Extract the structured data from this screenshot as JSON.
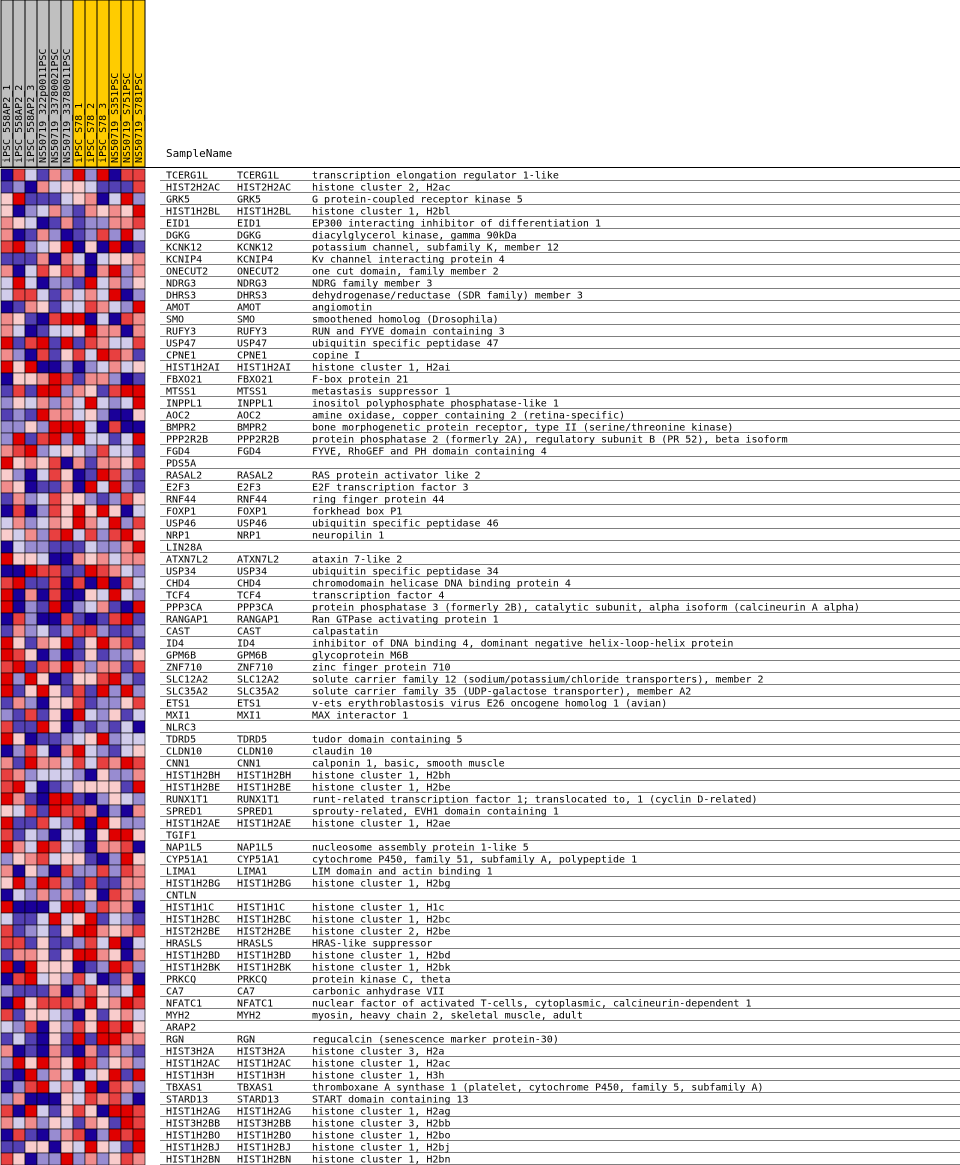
{
  "chart_data": {
    "type": "heatmap",
    "header_label": "SampleName",
    "columns": [
      {
        "name": "iPSC_558AP2_1",
        "group": "A"
      },
      {
        "name": "iPSC_558AP2_2",
        "group": "A"
      },
      {
        "name": "iPSC_558AP2_3",
        "group": "A"
      },
      {
        "name": "NS50719_322p0011PSC",
        "group": "A"
      },
      {
        "name": "NS50719_33780021PSC",
        "group": "A"
      },
      {
        "name": "NS50719_33780011PSC",
        "group": "A"
      },
      {
        "name": "iPSC_S78_1",
        "group": "B"
      },
      {
        "name": "iPSC_S78_2",
        "group": "B"
      },
      {
        "name": "iPSC_S78_3",
        "group": "B"
      },
      {
        "name": "NS50719_S351PSC",
        "group": "B"
      },
      {
        "name": "NS50719_S751PSC",
        "group": "B"
      },
      {
        "name": "NS50719_S781PSC",
        "group": "B"
      }
    ],
    "group_colors": {
      "A": "#c0c0c0",
      "B": "#ffcc00"
    },
    "color_scale": {
      "low": "#1a0099",
      "mid": "#ffffff",
      "high": "#e00000"
    },
    "rows": [
      {
        "id": "TCERG1L",
        "symbol": "TCERG1L",
        "desc": "transcription elongation regulator 1-like"
      },
      {
        "id": "HIST2H2AC",
        "symbol": "HIST2H2AC",
        "desc": "histone cluster 2, H2ac"
      },
      {
        "id": "GRK5",
        "symbol": "GRK5",
        "desc": "G protein-coupled receptor kinase 5"
      },
      {
        "id": "HIST1H2BL",
        "symbol": "HIST1H2BL",
        "desc": "histone cluster 1, H2bl"
      },
      {
        "id": "EID1",
        "symbol": "EID1",
        "desc": "EP300 interacting inhibitor of differentiation 1"
      },
      {
        "id": "DGKG",
        "symbol": "DGKG",
        "desc": "diacylglycerol kinase, gamma 90kDa"
      },
      {
        "id": "KCNK12",
        "symbol": "KCNK12",
        "desc": "potassium channel, subfamily K, member 12"
      },
      {
        "id": "KCNIP4",
        "symbol": "KCNIP4",
        "desc": "Kv channel interacting protein 4"
      },
      {
        "id": "ONECUT2",
        "symbol": "ONECUT2",
        "desc": "one cut domain, family member 2"
      },
      {
        "id": "NDRG3",
        "symbol": "NDRG3",
        "desc": "NDRG family member 3"
      },
      {
        "id": "DHRS3",
        "symbol": "DHRS3",
        "desc": "dehydrogenase/reductase (SDR family) member 3"
      },
      {
        "id": "AMOT",
        "symbol": "AMOT",
        "desc": "angiomotin"
      },
      {
        "id": "SMO",
        "symbol": "SMO",
        "desc": "smoothened homolog (Drosophila)"
      },
      {
        "id": "RUFY3",
        "symbol": "RUFY3",
        "desc": "RUN and FYVE domain containing 3"
      },
      {
        "id": "USP47",
        "symbol": "USP47",
        "desc": "ubiquitin specific peptidase 47"
      },
      {
        "id": "CPNE1",
        "symbol": "CPNE1",
        "desc": "copine I"
      },
      {
        "id": "HIST1H2AI",
        "symbol": "HIST1H2AI",
        "desc": "histone cluster 1, H2ai"
      },
      {
        "id": "FBXO21",
        "symbol": "FBXO21",
        "desc": "F-box protein 21"
      },
      {
        "id": "MTSS1",
        "symbol": "MTSS1",
        "desc": "metastasis suppressor 1"
      },
      {
        "id": "INPPL1",
        "symbol": "INPPL1",
        "desc": "inositol polyphosphate phosphatase-like 1"
      },
      {
        "id": "AOC2",
        "symbol": "AOC2",
        "desc": "amine oxidase, copper containing 2 (retina-specific)"
      },
      {
        "id": "BMPR2",
        "symbol": "BMPR2",
        "desc": "bone morphogenetic protein receptor, type II (serine/threonine kinase)"
      },
      {
        "id": "PPP2R2B",
        "symbol": "PPP2R2B",
        "desc": "protein phosphatase 2 (formerly 2A), regulatory subunit B (PR 52), beta isoform"
      },
      {
        "id": "FGD4",
        "symbol": "FGD4",
        "desc": "FYVE, RhoGEF and PH domain containing 4"
      },
      {
        "id": "PDS5A",
        "symbol": "",
        "desc": ""
      },
      {
        "id": "RASAL2",
        "symbol": "RASAL2",
        "desc": "RAS protein activator like 2"
      },
      {
        "id": "E2F3",
        "symbol": "E2F3",
        "desc": "E2F transcription factor 3"
      },
      {
        "id": "RNF44",
        "symbol": "RNF44",
        "desc": "ring finger protein 44"
      },
      {
        "id": "FOXP1",
        "symbol": "FOXP1",
        "desc": "forkhead box P1"
      },
      {
        "id": "USP46",
        "symbol": "USP46",
        "desc": "ubiquitin specific peptidase 46"
      },
      {
        "id": "NRP1",
        "symbol": "NRP1",
        "desc": "neuropilin 1"
      },
      {
        "id": "LIN28A",
        "symbol": "",
        "desc": ""
      },
      {
        "id": "ATXN7L2",
        "symbol": "ATXN7L2",
        "desc": "ataxin 7-like 2"
      },
      {
        "id": "USP34",
        "symbol": "USP34",
        "desc": "ubiquitin specific peptidase 34"
      },
      {
        "id": "CHD4",
        "symbol": "CHD4",
        "desc": "chromodomain helicase DNA binding protein 4"
      },
      {
        "id": "TCF4",
        "symbol": "TCF4",
        "desc": "transcription factor 4"
      },
      {
        "id": "PPP3CA",
        "symbol": "PPP3CA",
        "desc": "protein phosphatase 3 (formerly 2B), catalytic subunit, alpha isoform (calcineurin A alpha)"
      },
      {
        "id": "RANGAP1",
        "symbol": "RANGAP1",
        "desc": "Ran GTPase activating protein 1"
      },
      {
        "id": "CAST",
        "symbol": "CAST",
        "desc": "calpastatin"
      },
      {
        "id": "ID4",
        "symbol": "ID4",
        "desc": "inhibitor of DNA binding 4, dominant negative helix-loop-helix protein"
      },
      {
        "id": "GPM6B",
        "symbol": "GPM6B",
        "desc": "glycoprotein M6B"
      },
      {
        "id": "ZNF710",
        "symbol": "ZNF710",
        "desc": "zinc finger protein 710"
      },
      {
        "id": "SLC12A2",
        "symbol": "SLC12A2",
        "desc": "solute carrier family 12 (sodium/potassium/chloride transporters), member 2"
      },
      {
        "id": "SLC35A2",
        "symbol": "SLC35A2",
        "desc": "solute carrier family 35 (UDP-galactose transporter), member A2"
      },
      {
        "id": "ETS1",
        "symbol": "ETS1",
        "desc": "v-ets erythroblastosis virus E26 oncogene homolog 1 (avian)"
      },
      {
        "id": "MXI1",
        "symbol": "MXI1",
        "desc": "MAX interactor 1"
      },
      {
        "id": "NLRC3",
        "symbol": "",
        "desc": ""
      },
      {
        "id": "TDRD5",
        "symbol": "TDRD5",
        "desc": "tudor domain containing 5"
      },
      {
        "id": "CLDN10",
        "symbol": "CLDN10",
        "desc": "claudin 10"
      },
      {
        "id": "CNN1",
        "symbol": "CNN1",
        "desc": "calponin 1, basic, smooth muscle"
      },
      {
        "id": "HIST1H2BH",
        "symbol": "HIST1H2BH",
        "desc": "histone cluster 1, H2bh"
      },
      {
        "id": "HIST1H2BE",
        "symbol": "HIST1H2BE",
        "desc": "histone cluster 1, H2be"
      },
      {
        "id": "RUNX1T1",
        "symbol": "RUNX1T1",
        "desc": "runt-related transcription factor 1; translocated to, 1 (cyclin D-related)"
      },
      {
        "id": "SPRED1",
        "symbol": "SPRED1",
        "desc": "sprouty-related, EVH1 domain containing 1"
      },
      {
        "id": "HIST1H2AE",
        "symbol": "HIST1H2AE",
        "desc": "histone cluster 1, H2ae"
      },
      {
        "id": "TGIF1",
        "symbol": "",
        "desc": ""
      },
      {
        "id": "NAP1L5",
        "symbol": "NAP1L5",
        "desc": "nucleosome assembly protein 1-like 5"
      },
      {
        "id": "CYP51A1",
        "symbol": "CYP51A1",
        "desc": "cytochrome P450, family 51, subfamily A, polypeptide 1"
      },
      {
        "id": "LIMA1",
        "symbol": "LIMA1",
        "desc": "LIM domain and actin binding 1"
      },
      {
        "id": "HIST1H2BG",
        "symbol": "HIST1H2BG",
        "desc": "histone cluster 1, H2bg"
      },
      {
        "id": "CNTLN",
        "symbol": "",
        "desc": ""
      },
      {
        "id": "HIST1H1C",
        "symbol": "HIST1H1C",
        "desc": "histone cluster 1, H1c"
      },
      {
        "id": "HIST1H2BC",
        "symbol": "HIST1H2BC",
        "desc": "histone cluster 1, H2bc"
      },
      {
        "id": "HIST2H2BE",
        "symbol": "HIST2H2BE",
        "desc": "histone cluster 2, H2be"
      },
      {
        "id": "HRASLS",
        "symbol": "HRASLS",
        "desc": "HRAS-like suppressor"
      },
      {
        "id": "HIST1H2BD",
        "symbol": "HIST1H2BD",
        "desc": "histone cluster 1, H2bd"
      },
      {
        "id": "HIST1H2BK",
        "symbol": "HIST1H2BK",
        "desc": "histone cluster 1, H2bk"
      },
      {
        "id": "PRKCQ",
        "symbol": "PRKCQ",
        "desc": "protein kinase C, theta"
      },
      {
        "id": "CA7",
        "symbol": "CA7",
        "desc": "carbonic anhydrase VII"
      },
      {
        "id": "NFATC1",
        "symbol": "NFATC1",
        "desc": "nuclear factor of activated T-cells, cytoplasmic, calcineurin-dependent 1"
      },
      {
        "id": "MYH2",
        "symbol": "MYH2",
        "desc": "myosin, heavy chain 2, skeletal muscle, adult"
      },
      {
        "id": "ARAP2",
        "symbol": "",
        "desc": ""
      },
      {
        "id": "RGN",
        "symbol": "RGN",
        "desc": "regucalcin (senescence marker protein-30)"
      },
      {
        "id": "HIST3H2A",
        "symbol": "HIST3H2A",
        "desc": "histone cluster 3, H2a"
      },
      {
        "id": "HIST1H2AC",
        "symbol": "HIST1H2AC",
        "desc": "histone cluster 1, H2ac"
      },
      {
        "id": "HIST1H3H",
        "symbol": "HIST1H3H",
        "desc": "histone cluster 1, H3h"
      },
      {
        "id": "TBXAS1",
        "symbol": "TBXAS1",
        "desc": "thromboxane A synthase 1 (platelet, cytochrome P450, family 5, subfamily A)"
      },
      {
        "id": "STARD13",
        "symbol": "STARD13",
        "desc": "START domain containing 13"
      },
      {
        "id": "HIST1H2AG",
        "symbol": "HIST1H2AG",
        "desc": "histone cluster 1, H2ag"
      },
      {
        "id": "HIST3H2BB",
        "symbol": "HIST3H2BB",
        "desc": "histone cluster 3, H2bb"
      },
      {
        "id": "HIST1H2BO",
        "symbol": "HIST1H2BO",
        "desc": "histone cluster 1, H2bo"
      },
      {
        "id": "HIST1H2BJ",
        "symbol": "HIST1H2BJ",
        "desc": "histone cluster 1, H2bj"
      },
      {
        "id": "HIST1H2BN",
        "symbol": "HIST1H2BN",
        "desc": "histone cluster 1, H2bn"
      }
    ]
  }
}
